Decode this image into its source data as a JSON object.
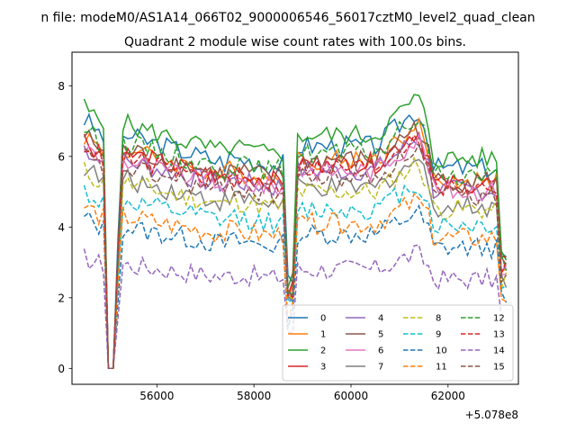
{
  "chart_data": {
    "type": "line",
    "suptitle": "n file: modeM0/AS1A14_066T02_9000006546_56017cztM0_level2_quad_clean",
    "title": "Quadrant 2 module wise count rates with 100.0s bins.",
    "xlabel": "",
    "ylabel": "",
    "offset_label": "+5.078e8",
    "x_offset": 507800000,
    "xlim": [
      54250,
      63450
    ],
    "ylim": [
      -0.45,
      8.95
    ],
    "xticks": [
      56000,
      58000,
      60000,
      62000
    ],
    "xtick_labels": [
      "56000",
      "58000",
      "60000",
      "62000"
    ],
    "yticks": [
      0,
      2,
      4,
      6,
      8
    ],
    "ytick_labels": [
      "0",
      "2",
      "4",
      "6",
      "8"
    ],
    "legend_location": "lower-right",
    "legend_columns": 4,
    "x_start": 54500,
    "x_step": 100,
    "series": [
      {
        "name": "0",
        "color": "#1f77b4",
        "dash": "solid",
        "base": 6.3
      },
      {
        "name": "1",
        "color": "#ff7f0e",
        "dash": "solid",
        "base": 5.9
      },
      {
        "name": "2",
        "color": "#2ca02c",
        "dash": "solid",
        "base": 6.6
      },
      {
        "name": "3",
        "color": "#d62728",
        "dash": "solid",
        "base": 5.8
      },
      {
        "name": "4",
        "color": "#9467bd",
        "dash": "solid",
        "base": 5.6
      },
      {
        "name": "5",
        "color": "#8c564b",
        "dash": "solid",
        "base": 5.9
      },
      {
        "name": "6",
        "color": "#e377c2",
        "dash": "solid",
        "base": 5.6
      },
      {
        "name": "7",
        "color": "#7f7f7f",
        "dash": "solid",
        "base": 5.1
      },
      {
        "name": "8",
        "color": "#bcbd22",
        "dash": "dashed",
        "base": 5.0
      },
      {
        "name": "9",
        "color": "#17becf",
        "dash": "dashed",
        "base": 4.5
      },
      {
        "name": "10",
        "color": "#1f77b4",
        "dash": "dashed",
        "base": 3.8
      },
      {
        "name": "11",
        "color": "#ff7f0e",
        "dash": "dashed",
        "base": 4.1
      },
      {
        "name": "12",
        "color": "#2ca02c",
        "dash": "dashed",
        "base": 6.1
      },
      {
        "name": "13",
        "color": "#d62728",
        "dash": "dashed",
        "base": 5.7
      },
      {
        "name": "14",
        "color": "#9467bd",
        "dash": "dashed",
        "base": 2.8
      },
      {
        "name": "15",
        "color": "#8c564b",
        "dash": "dashed",
        "base": 5.4
      }
    ]
  }
}
